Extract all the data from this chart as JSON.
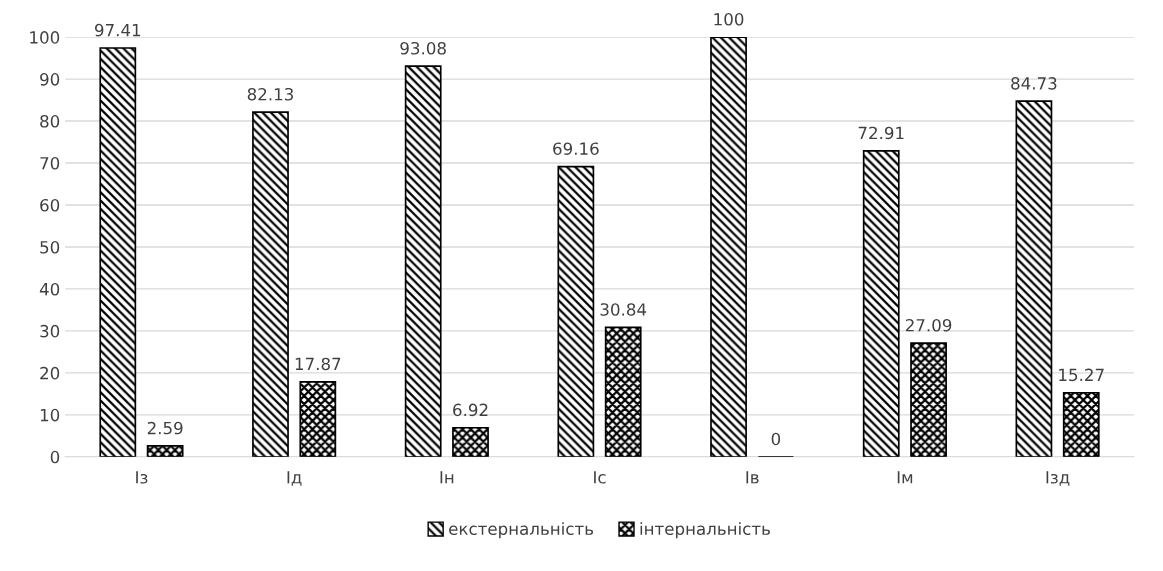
{
  "chart_data": {
    "type": "bar",
    "categories": [
      "Із",
      "Ід",
      "Ін",
      "Іс",
      "Ів",
      "Ім",
      "Ізд"
    ],
    "series": [
      {
        "name": "екстернальність",
        "color": "#000000",
        "values": [
          97.41,
          82.13,
          93.08,
          69.16,
          100,
          72.91,
          84.73
        ]
      },
      {
        "name": "інтернальність",
        "color": "#000000",
        "values": [
          2.59,
          17.87,
          6.92,
          30.84,
          0,
          27.09,
          15.27
        ]
      }
    ],
    "ylim": [
      0,
      100
    ],
    "yticks": [
      0,
      10,
      20,
      30,
      40,
      50,
      60,
      70,
      80,
      90,
      100
    ],
    "grid": "y",
    "legend": "bottom",
    "data_labels": true
  }
}
